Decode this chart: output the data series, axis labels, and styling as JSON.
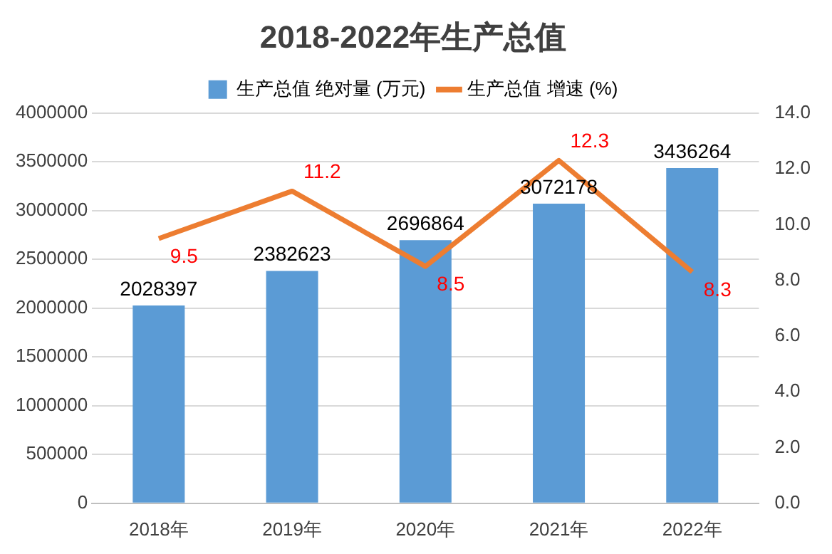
{
  "chart_data": {
    "type": "bar",
    "title": "2018-2022年生产总值",
    "categories": [
      "2018年",
      "2019年",
      "2020年",
      "2021年",
      "2022年"
    ],
    "series": [
      {
        "name": "生产总值 绝对量 (万元)",
        "color": "#5b9bd5",
        "values": [
          2028397,
          2382623,
          2696864,
          3072178,
          3436264
        ]
      },
      {
        "name": "生产总值 增速 (%)",
        "type": "line",
        "axis": "y2",
        "color": "#ed7d31",
        "values": [
          9.5,
          11.2,
          8.5,
          12.3,
          8.3
        ]
      }
    ],
    "ylim": [
      0,
      4000000
    ],
    "yticks": [
      0,
      500000,
      1000000,
      1500000,
      2000000,
      2500000,
      3000000,
      3500000,
      4000000
    ],
    "y2lim": [
      0,
      14
    ],
    "y2ticks": [
      {
        "value": 0,
        "label": "0.0"
      },
      {
        "value": 2,
        "label": "2.0"
      },
      {
        "value": 4,
        "label": "4.0"
      },
      {
        "value": 6,
        "label": "6.0"
      },
      {
        "value": 8,
        "label": "8.0"
      },
      {
        "value": 10,
        "label": "10.0"
      },
      {
        "value": 12,
        "label": "12.0"
      },
      {
        "value": 14,
        "label": "14.0"
      }
    ],
    "grid": "y",
    "legend": "top",
    "marker": "none",
    "line_style": "solid",
    "data_labels": true
  }
}
